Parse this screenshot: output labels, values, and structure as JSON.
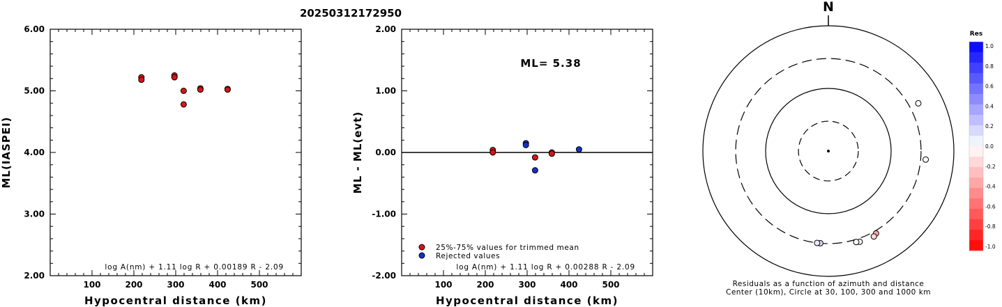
{
  "page_title": "20250312172950",
  "colors": {
    "accepted": "#d61515",
    "rejected": "#1530c8",
    "axis": "#000000"
  },
  "chart_data": [
    {
      "type": "scatter",
      "title": "",
      "xlabel": "Hypocentral distance (km)",
      "ylabel": "ML(IASPEI)",
      "xlim": [
        0,
        600
      ],
      "ylim": [
        2.0,
        6.0
      ],
      "x_ticks": [
        100,
        200,
        300,
        400,
        500
      ],
      "y_ticks": [
        "2.00",
        "3.00",
        "4.00",
        "5.00",
        "6.00"
      ],
      "formula": "log A(nm) + 1.11 log R + 0.00189 R - 2.09",
      "series": [
        {
          "x": [
            218,
            218,
            297,
            297,
            319,
            319,
            359,
            359,
            424,
            424
          ],
          "y": [
            5.22,
            5.18,
            5.25,
            5.22,
            5.0,
            4.78,
            5.04,
            5.02,
            5.03,
            5.02
          ]
        }
      ]
    },
    {
      "type": "scatter",
      "title": "",
      "xlabel": "Hypocentral distance (km)",
      "ylabel": "ML - ML(evt)",
      "xlim": [
        0,
        600
      ],
      "ylim": [
        -2.0,
        2.0
      ],
      "x_ticks": [
        100,
        200,
        300,
        400,
        500
      ],
      "y_ticks": [
        "-2.00",
        "-1.00",
        "0.00",
        "1.00",
        "2.00"
      ],
      "annotation": "ML= 5.38",
      "legend": [
        "25%-75% values for trimmed mean",
        "Rejected values"
      ],
      "formula": "log A(nm) + 1.11 log R + 0.00288 R - 2.09",
      "series": [
        {
          "name": "25%-75% values for trimmed mean",
          "x": [
            218,
            218,
            319,
            359,
            359
          ],
          "y": [
            0.04,
            0.0,
            -0.08,
            0.0,
            -0.02
          ]
        },
        {
          "name": "Rejected values",
          "x": [
            297,
            297,
            319,
            424
          ],
          "y": [
            0.15,
            0.12,
            -0.29,
            0.05
          ]
        }
      ]
    },
    {
      "type": "polar",
      "north_label": "N",
      "caption_line1": "Residuals as a function of azimuth and distance",
      "caption_line2": "Center (10km), Circle at 30, 100, 300 and 1000 km",
      "colorbar": {
        "title": "Res",
        "labels": [
          "1.0",
          "0.8",
          "0.6",
          "0.4",
          "0.2",
          "0.0",
          "-0.2",
          "-0.4",
          "-0.6",
          "-0.8",
          "-1.0"
        ]
      },
      "points": [
        {
          "azimuth_deg": 62,
          "distance_km": 420,
          "residual": 0.0
        },
        {
          "azimuth_deg": 95,
          "distance_km": 360,
          "residual": 0.0
        },
        {
          "azimuth_deg": 150,
          "distance_km": 330,
          "residual": -0.35
        },
        {
          "azimuth_deg": 152,
          "distance_km": 350,
          "residual": -0.15
        },
        {
          "azimuth_deg": 161,
          "distance_km": 340,
          "residual": 0.0
        },
        {
          "azimuth_deg": 163,
          "distance_km": 330,
          "residual": 0.0
        },
        {
          "azimuth_deg": 185,
          "distance_km": 300,
          "residual": 0.15
        },
        {
          "azimuth_deg": 187,
          "distance_km": 300,
          "residual": 0.08
        }
      ]
    }
  ]
}
